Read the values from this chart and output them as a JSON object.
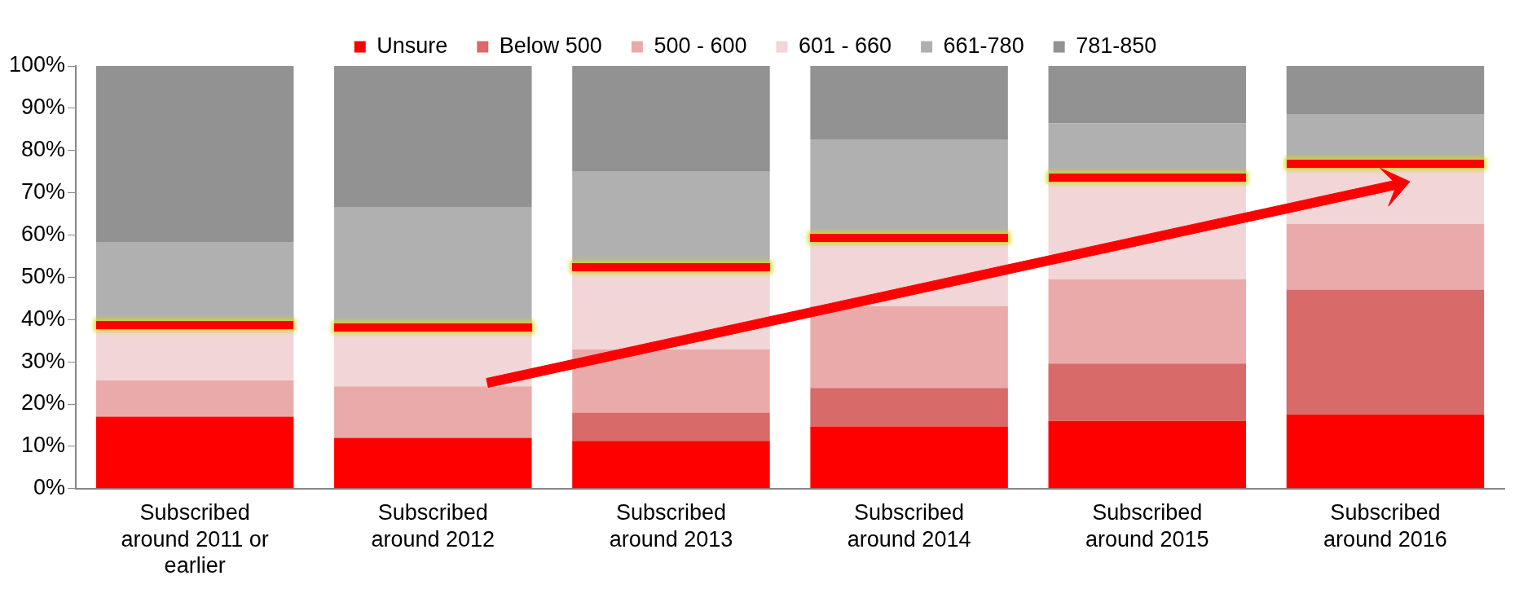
{
  "chart_data": {
    "type": "bar",
    "stacked": true,
    "categories": [
      "Subscribed around 2011 or earlier",
      "Subscribed around 2012",
      "Subscribed around 2013",
      "Subscribed around 2014",
      "Subscribed around 2015",
      "Subscribed around 2016"
    ],
    "series": [
      {
        "name": "Unsure",
        "color": "#ff0000",
        "values": [
          17,
          12,
          11.3,
          14.7,
          16,
          17.5
        ]
      },
      {
        "name": "Below 500",
        "color": "#d86a6a",
        "values": [
          0,
          0,
          6.7,
          9.1,
          13.6,
          29.6
        ]
      },
      {
        "name": "500 - 600",
        "color": "#ebaaaa",
        "values": [
          8.6,
          12.2,
          14.9,
          19.4,
          19.9,
          15.5
        ]
      },
      {
        "name": "601 - 660",
        "color": "#f2d5d7",
        "values": [
          11.9,
          12.8,
          18.4,
          15,
          22.9,
          13.1
        ]
      },
      {
        "name": "661-780",
        "color": "#b0b0b0",
        "values": [
          20.7,
          29.5,
          23.7,
          24.3,
          14,
          12.8
        ]
      },
      {
        "name": "781-850",
        "color": "#929292",
        "values": [
          41.8,
          33.5,
          25,
          17.5,
          13.6,
          11.5
        ]
      }
    ],
    "ylim": [
      0,
      100
    ],
    "yticks": [
      {
        "value": 0,
        "label": "0%"
      },
      {
        "value": 10,
        "label": "10%"
      },
      {
        "value": 20,
        "label": "20%"
      },
      {
        "value": 30,
        "label": "30%"
      },
      {
        "value": 40,
        "label": "40%"
      },
      {
        "value": 50,
        "label": "50%"
      },
      {
        "value": 60,
        "label": "60%"
      },
      {
        "value": 70,
        "label": "70%"
      },
      {
        "value": 80,
        "label": "80%"
      },
      {
        "value": 90,
        "label": "90%"
      },
      {
        "value": 100,
        "label": "100%"
      }
    ],
    "grid": false,
    "legend": "top"
  }
}
